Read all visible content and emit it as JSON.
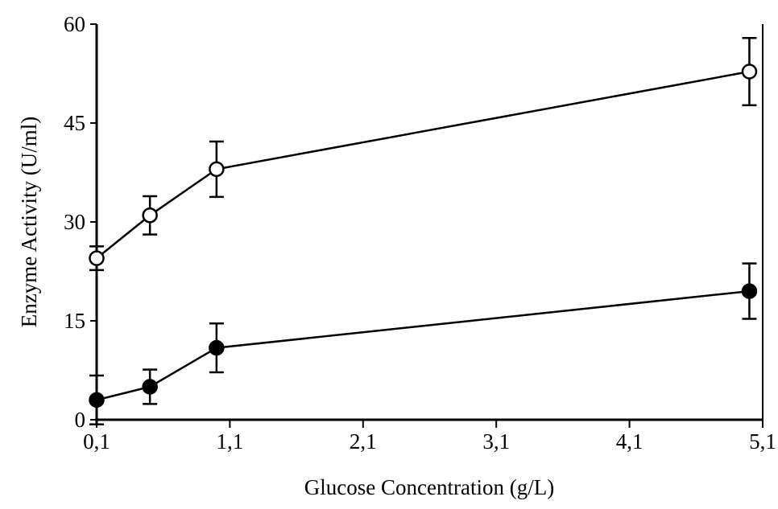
{
  "chart_data": {
    "type": "line",
    "title": "",
    "xlabel": "Glucose Concentration (g/L)",
    "ylabel": "Enzyme Activity (U/ml)",
    "xlim": [
      0.1,
      5.1
    ],
    "ylim": [
      0,
      60
    ],
    "xticks": [
      0.1,
      1.1,
      2.1,
      3.1,
      4.1,
      5.1
    ],
    "xtick_labels": [
      "0,1",
      "1,1",
      "2,1",
      "3,1",
      "4,1",
      "5,1"
    ],
    "yticks": [
      0,
      15,
      30,
      45,
      60
    ],
    "ytick_labels": [
      "0",
      "15",
      "30",
      "45",
      "60"
    ],
    "grid": false,
    "legend": "none",
    "series": [
      {
        "name": "open-circles",
        "marker": "open",
        "x": [
          0.1,
          0.5,
          1.0,
          5.0
        ],
        "y": [
          24.5,
          31.0,
          38.0,
          52.8
        ],
        "error": [
          1.8,
          2.9,
          4.2,
          5.1
        ]
      },
      {
        "name": "filled-circles",
        "marker": "filled",
        "x": [
          0.1,
          0.5,
          1.0,
          5.0
        ],
        "y": [
          3.0,
          5.0,
          10.9,
          19.5
        ],
        "error": [
          3.7,
          2.6,
          3.7,
          4.2
        ]
      }
    ]
  }
}
